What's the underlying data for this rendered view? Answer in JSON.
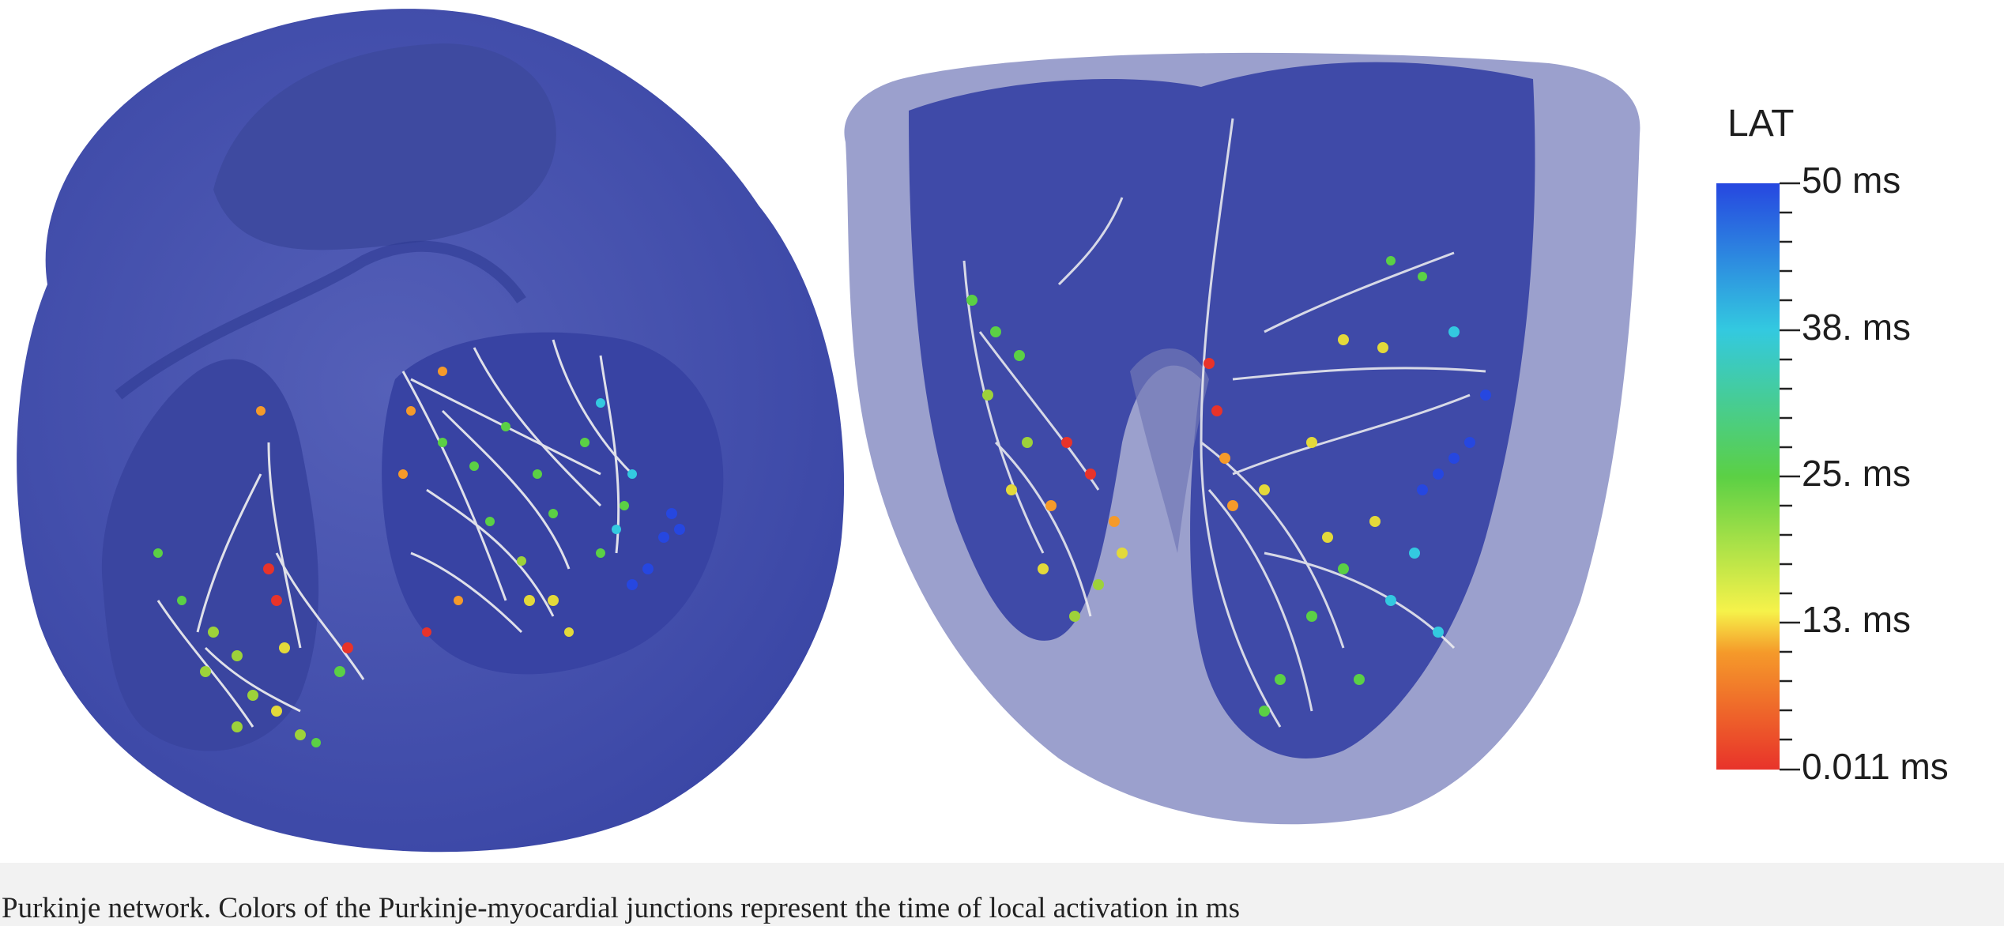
{
  "figure": {
    "caption": "Purkinje network. Colors of the Purkinje-myocardial junctions represent the time of local activation in ms",
    "colorbar": {
      "title": "LAT",
      "ticks": [
        "50 ms",
        "38. ms",
        "25. ms",
        "13. ms",
        "0.011 ms"
      ],
      "range": [
        0.011,
        50
      ],
      "colors": [
        "#e8332a",
        "#f59a2a",
        "#f6f24a",
        "#5bd045",
        "#33c9e0",
        "#2647e0"
      ]
    },
    "colors": {
      "myocardium": "#4a55b0",
      "fibers": "#ffffff",
      "background": "#ffffff",
      "caption_bar": "#f2f2f2"
    }
  }
}
